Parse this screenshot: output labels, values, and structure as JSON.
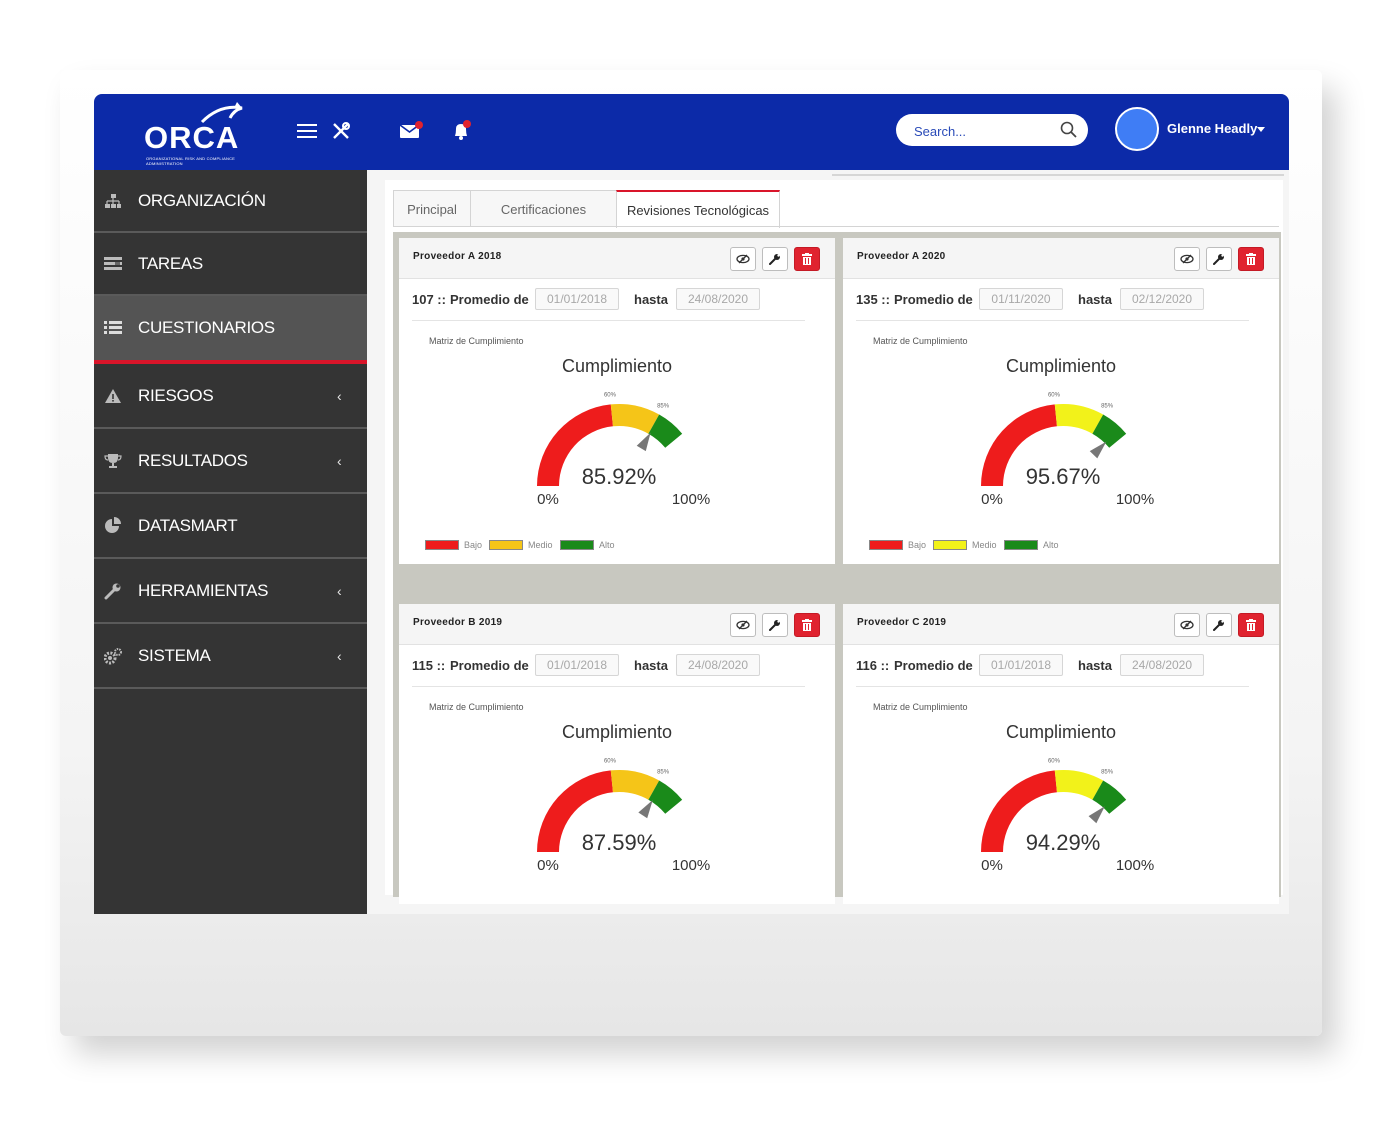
{
  "header": {
    "logo_text": "ORCA",
    "logo_tagline": "ORGANIZATIONAL RISK AND COMPLIANCE ADMINISTRATION",
    "search_placeholder": "Search...",
    "user_name": "Glenne Headly",
    "icons": [
      "menu-icon",
      "tools-icon",
      "mail-icon",
      "bell-icon",
      "search-icon"
    ],
    "colors": {
      "primary": "#0c2aa8",
      "notification": "#e0232f"
    }
  },
  "sidebar": {
    "items": [
      {
        "label": "ORGANIZACIÓN",
        "icon": "sitemap-icon",
        "has_submenu": false
      },
      {
        "label": "TAREAS",
        "icon": "tasks-icon",
        "has_submenu": false
      },
      {
        "label": "CUESTIONARIOS",
        "icon": "list-icon",
        "has_submenu": false,
        "active": true
      },
      {
        "label": "RIESGOS",
        "icon": "warning-icon",
        "has_submenu": true,
        "chevron": "‹"
      },
      {
        "label": "RESULTADOS",
        "icon": "trophy-icon",
        "has_submenu": true,
        "chevron": "‹"
      },
      {
        "label": "DATASMART",
        "icon": "pie-chart-icon",
        "has_submenu": false
      },
      {
        "label": "HERRAMIENTAS",
        "icon": "wrench-icon",
        "has_submenu": true,
        "chevron": "‹"
      },
      {
        "label": "SISTEMA",
        "icon": "cogs-icon",
        "has_submenu": true,
        "chevron": "‹"
      }
    ]
  },
  "tabs": [
    {
      "label": "Principal"
    },
    {
      "label": "Certificaciones"
    },
    {
      "label": "Revisiones Tecnológicas",
      "active": true
    }
  ],
  "cards": [
    {
      "title": "Proveedor A 2018",
      "id_label": "107 ::",
      "promedio_label": "Promedio de",
      "from": "01/01/2018",
      "hasta_label": "hasta",
      "to": "24/08/2020",
      "matrix_label": "Matriz de Cumplimiento",
      "gauge_title": "Cumplimiento",
      "value_label": "85.92%",
      "value": 85.92,
      "show_legend": true
    },
    {
      "title": "Proveedor A 2020",
      "id_label": "135 ::",
      "promedio_label": "Promedio de",
      "from": "01/11/2020",
      "hasta_label": "hasta",
      "to": "02/12/2020",
      "matrix_label": "Matriz de Cumplimiento",
      "gauge_title": "Cumplimiento",
      "value_label": "95.67%",
      "value": 95.67,
      "show_legend": true
    },
    {
      "title": "Proveedor B 2019",
      "id_label": "115 ::",
      "promedio_label": "Promedio de",
      "from": "01/01/2018",
      "hasta_label": "hasta",
      "to": "24/08/2020",
      "matrix_label": "Matriz de Cumplimiento",
      "gauge_title": "Cumplimiento",
      "value_label": "87.59%",
      "value": 87.59,
      "show_legend": false
    },
    {
      "title": "Proveedor C 2019",
      "id_label": "116 ::",
      "promedio_label": "Promedio de",
      "from": "01/01/2018",
      "hasta_label": "hasta",
      "to": "24/08/2020",
      "matrix_label": "Matriz de Cumplimiento",
      "gauge_title": "Cumplimiento",
      "value_label": "94.29%",
      "value": 94.29,
      "show_legend": false
    }
  ],
  "gauge": {
    "min_label": "0%",
    "max_label": "100%",
    "tick_mid": "60%",
    "tick_high": "85%",
    "bands": [
      {
        "name": "Bajo",
        "from": 0,
        "to": 60,
        "color": "#ee1c1c"
      },
      {
        "name": "Medio",
        "from": 60,
        "to": 85,
        "color": "#f5c518"
      },
      {
        "name": "Alto",
        "from": 85,
        "to": 100,
        "color": "#1a8a1a"
      }
    ],
    "medio_color_alt": "#f2f21a"
  },
  "legend": [
    {
      "label": "Bajo",
      "color": "#ee1c1c"
    },
    {
      "label": "Medio",
      "color": "#f5c518"
    },
    {
      "label": "Alto",
      "color": "#1a8a1a"
    }
  ]
}
